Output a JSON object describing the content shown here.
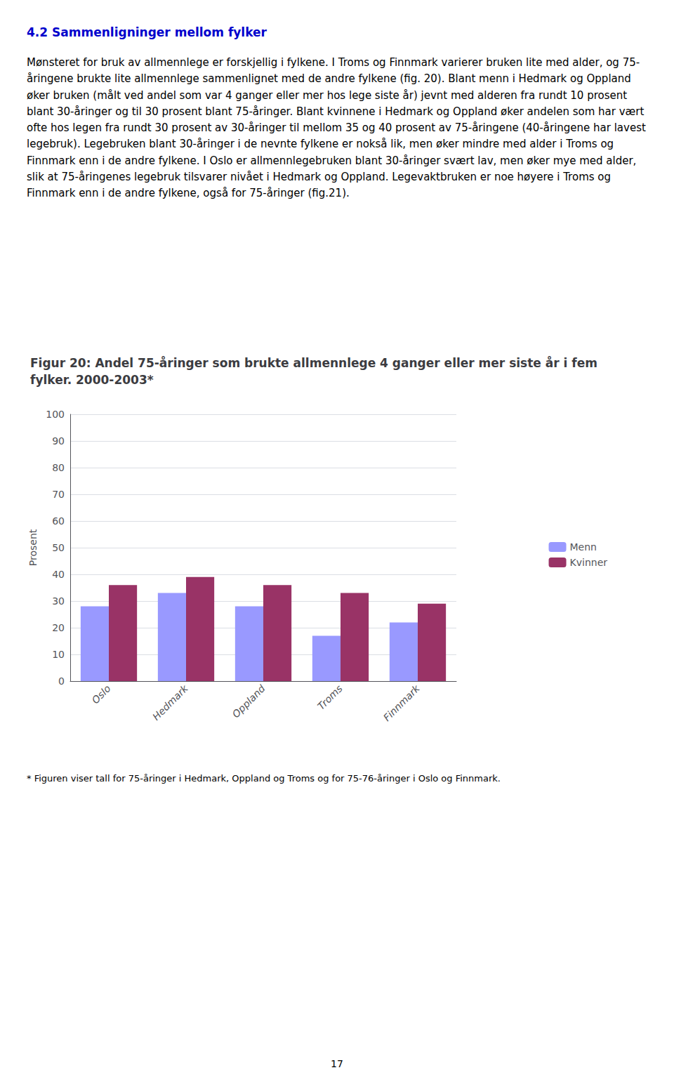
{
  "section_title": "4.2 Sammenligninger mellom fylker",
  "section_title_color": "#0000CC",
  "body_text": "Mønsteret for bruk av allmennlege er forskjellig i fylkene. I Troms og Finnmark varierer bruken lite med alder, og 75-åringene brukte lite allmennlege sammenlignet med de andre fylkene (fig. 20). Blant menn i Hedmark og Oppland øker bruken (målt ved andel som var 4 ganger eller mer hos lege siste år) jevnt med alderen fra rundt 10 prosent blant 30-åringer og til 30 prosent blant 75-åringer. Blant kvinnene i Hedmark og Oppland øker andelen som har vært ofte hos legen fra rundt 30 prosent av 30-åringer til mellom 35 og 40 prosent av 75-åringene (40-åringene har lavest legebruk). Legebruken blant 30-åringer i de nevnte fylkene er nokså lik, men øker mindre med alder i Troms og Finnmark enn i de andre fylkene. I Oslo er allmennlegebruken blant 30-åringer svært lav, men øker mye med alder, slik at 75-åringenes legebruk tilsvarer nivået i Hedmark og Oppland. Legevaktbruken er noe høyere i Troms og Finnmark enn i de andre fylkene, også for 75-åringer (fig.21).",
  "footnote": "* Figuren viser tall for 75-åringer i Hedmark, Oppland og Troms og for 75-76-åringer i Oslo og Finnmark.",
  "page_number": "17",
  "chart_data": {
    "type": "bar",
    "title": "Figur 20: Andel 75-åringer som brukte allmennlege 4 ganger eller mer siste år i fem fylker. 2000-2003*",
    "y_label": "Prosent",
    "categories": [
      "Oslo",
      "Hedmark",
      "Oppland",
      "Troms",
      "Finnmark"
    ],
    "series": [
      {
        "name": "Menn",
        "color": "#9999FF",
        "values": [
          28,
          33,
          28,
          17,
          22
        ]
      },
      {
        "name": "Kvinner",
        "color": "#993366",
        "values": [
          36,
          39,
          36,
          33,
          29
        ]
      }
    ],
    "ylim": [
      0,
      100
    ],
    "yticks": [
      0,
      10,
      20,
      30,
      40,
      50,
      60,
      70,
      80,
      90,
      100
    ],
    "grid": true,
    "legend": "right"
  }
}
